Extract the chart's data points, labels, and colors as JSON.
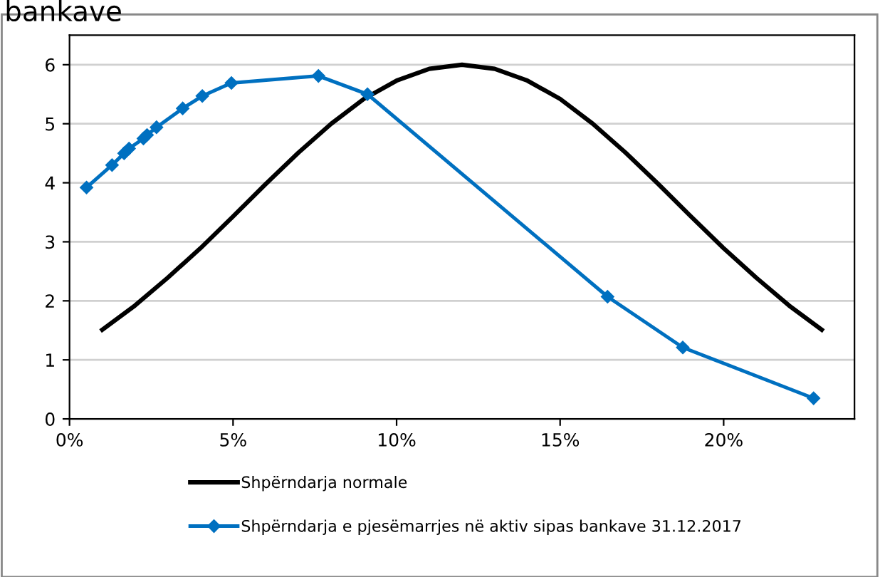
{
  "chart_data": {
    "type": "line",
    "title": "bankave",
    "xlim": [
      0,
      24
    ],
    "xticks": [
      {
        "value": 0,
        "label": "0%"
      },
      {
        "value": 5,
        "label": "5%"
      },
      {
        "value": 10,
        "label": "10%"
      },
      {
        "value": 15,
        "label": "15%"
      },
      {
        "value": 20,
        "label": "20%"
      }
    ],
    "ylim": [
      0,
      6.5
    ],
    "yticks": [
      0,
      1,
      2,
      3,
      4,
      5,
      6
    ],
    "grid": "y",
    "legend": "bottom",
    "line_style": "solid",
    "series": [
      {
        "name": "Shpërndarja normale",
        "color": "#000000",
        "marker": "none",
        "x": [
          1,
          2,
          3,
          4,
          5,
          6,
          7,
          8,
          9,
          10,
          11,
          12,
          13,
          14,
          15,
          16,
          17,
          18,
          19,
          20,
          21,
          22,
          23
        ],
        "values": [
          1.51,
          1.92,
          2.39,
          2.89,
          3.43,
          3.98,
          4.51,
          5.0,
          5.42,
          5.73,
          5.93,
          6.0,
          5.93,
          5.73,
          5.42,
          5.0,
          4.51,
          3.98,
          3.43,
          2.89,
          2.39,
          1.92,
          1.51
        ]
      },
      {
        "name": "Shpërndarja e pjesëmarrjes në aktiv sipas bankave 31.12.2017",
        "color": "#0070c0",
        "marker": "diamond",
        "x": [
          0.52,
          1.3,
          1.67,
          1.82,
          2.26,
          2.37,
          2.66,
          3.46,
          4.06,
          4.95,
          7.61,
          9.11,
          16.45,
          18.75,
          22.75
        ],
        "values": [
          3.92,
          4.3,
          4.5,
          4.58,
          4.75,
          4.81,
          4.94,
          5.26,
          5.47,
          5.69,
          5.81,
          5.5,
          2.07,
          1.21,
          0.35
        ]
      }
    ]
  }
}
